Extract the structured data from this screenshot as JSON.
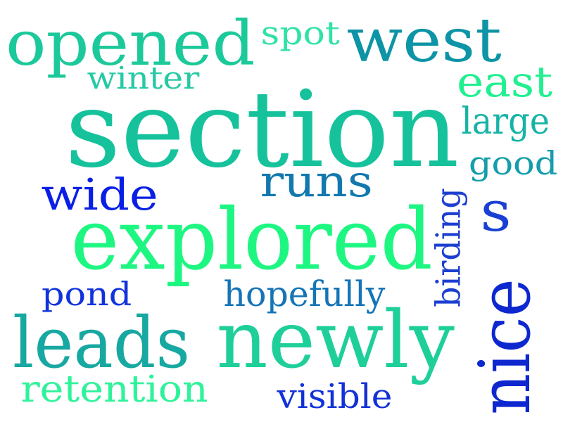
{
  "words": [
    {
      "id": "opened",
      "text": "opened",
      "color": "#1cc99a",
      "vertical": false
    },
    {
      "id": "spot",
      "text": "spot",
      "color": "#2fe2a7",
      "vertical": false
    },
    {
      "id": "west",
      "text": "west",
      "color": "#0d94a6",
      "vertical": false
    },
    {
      "id": "winter",
      "text": "winter",
      "color": "#27c9a4",
      "vertical": false
    },
    {
      "id": "east",
      "text": "east",
      "color": "#21f090",
      "vertical": false
    },
    {
      "id": "section",
      "text": "section",
      "color": "#16c29b",
      "vertical": false
    },
    {
      "id": "large",
      "text": "large",
      "color": "#17b4a6",
      "vertical": false
    },
    {
      "id": "good",
      "text": "good",
      "color": "#159dac",
      "vertical": false
    },
    {
      "id": "runs",
      "text": "runs",
      "color": "#1378ae",
      "vertical": false
    },
    {
      "id": "wide",
      "text": "wide",
      "color": "#0a1fe6",
      "vertical": false
    },
    {
      "id": "s",
      "text": "s",
      "color": "#1a3fd4",
      "vertical": false
    },
    {
      "id": "birding",
      "text": "birding",
      "color": "#1c3fd0",
      "vertical": true
    },
    {
      "id": "explored",
      "text": "explored",
      "color": "#1df782",
      "vertical": false
    },
    {
      "id": "pond",
      "text": "pond",
      "color": "#1133dc",
      "vertical": false
    },
    {
      "id": "hopefully",
      "text": "hopefully",
      "color": "#1575b6",
      "vertical": false
    },
    {
      "id": "nice",
      "text": "nice",
      "color": "#0d28cf",
      "vertical": true
    },
    {
      "id": "leads",
      "text": "leads",
      "color": "#17a8a1",
      "vertical": false
    },
    {
      "id": "newly",
      "text": "newly",
      "color": "#1fcf9a",
      "vertical": false
    },
    {
      "id": "retention",
      "text": "retention",
      "color": "#2ef39a",
      "vertical": false
    },
    {
      "id": "visible",
      "text": "visible",
      "color": "#1231d8",
      "vertical": false
    }
  ]
}
